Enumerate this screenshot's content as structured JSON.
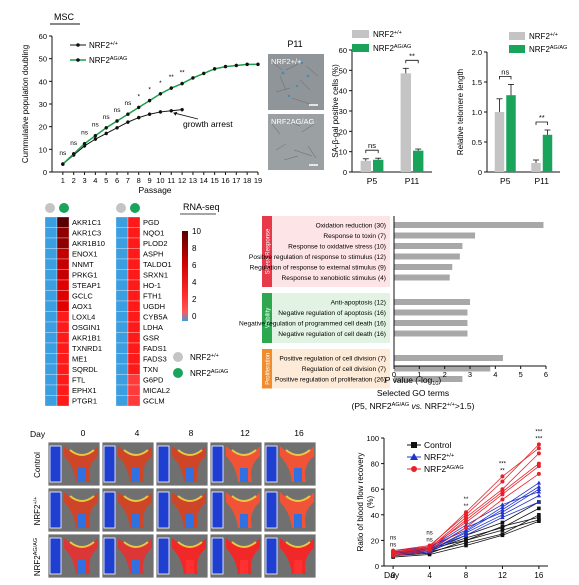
{
  "panelA": {
    "header": "MSC",
    "chart_data": {
      "type": "line",
      "xlabel": "Passage",
      "ylabel": "Cummulative population doubling",
      "xlim": [
        0,
        19
      ],
      "ylim": [
        0,
        60
      ],
      "xticks": [
        1,
        2,
        3,
        4,
        5,
        6,
        7,
        8,
        9,
        10,
        11,
        12,
        13,
        14,
        15,
        16,
        17,
        18,
        19
      ],
      "yticks": [
        0,
        10,
        20,
        30,
        40,
        50,
        60
      ],
      "series": [
        {
          "name": "NRF2+/+",
          "color": "#111111",
          "x": [
            1,
            2,
            3,
            4,
            5,
            6,
            7,
            8,
            9,
            10,
            11,
            12
          ],
          "y": [
            3.5,
            7.5,
            11.5,
            14.5,
            17,
            19.5,
            22,
            24,
            25.5,
            26.5,
            27,
            27.5
          ]
        },
        {
          "name": "NRF2AG/AG",
          "color": "#1a9f4a",
          "x": [
            1,
            2,
            3,
            4,
            5,
            6,
            7,
            8,
            9,
            10,
            11,
            12,
            13,
            14,
            15,
            16,
            17,
            18,
            19
          ],
          "y": [
            3.5,
            8,
            12.5,
            16,
            19.5,
            22.5,
            25.5,
            28.5,
            31.5,
            34.5,
            37,
            39,
            41.5,
            43.5,
            45.5,
            46.5,
            47,
            47.5,
            47.5
          ]
        }
      ],
      "significance": [
        {
          "x": 1,
          "label": "ns"
        },
        {
          "x": 2,
          "label": "ns"
        },
        {
          "x": 3,
          "label": "ns"
        },
        {
          "x": 4,
          "label": "ns"
        },
        {
          "x": 5,
          "label": "ns"
        },
        {
          "x": 6,
          "label": "ns"
        },
        {
          "x": 7,
          "label": "ns"
        },
        {
          "x": 8,
          "label": "*"
        },
        {
          "x": 9,
          "label": "*"
        },
        {
          "x": 10,
          "label": "*"
        },
        {
          "x": 11,
          "label": "**"
        },
        {
          "x": 12,
          "label": "**"
        }
      ],
      "annotation": "growth arrest",
      "legend": [
        "NRF2+/+",
        "NRF2AG/AG"
      ]
    }
  },
  "panelB": {
    "title": "P11",
    "img1_label": "NRF2+/+",
    "img2_label": "NRF2AG/AG"
  },
  "panelC": {
    "chart_data": {
      "type": "bar",
      "categories": [
        "P5",
        "P11"
      ],
      "ylabel": "SA-β-gal positive cells (%)",
      "ylim": [
        0,
        60
      ],
      "yticks": [
        0,
        10,
        20,
        30,
        40,
        50,
        60
      ],
      "series": [
        {
          "name": "NRF2+/+",
          "color": "#c4c4c4",
          "values": [
            5.5,
            48.5
          ],
          "err": [
            1,
            2.5
          ]
        },
        {
          "name": "NRF2AG/AG",
          "color": "#1aa35a",
          "values": [
            6,
            10.5
          ],
          "err": [
            0.8,
            0.8
          ]
        }
      ],
      "significance": [
        {
          "cat": "P5",
          "label": "ns"
        },
        {
          "cat": "P11",
          "label": "**"
        }
      ],
      "legend": [
        "NRF2+/+",
        "NRF2AG/AG"
      ]
    }
  },
  "panelD": {
    "chart_data": {
      "type": "bar",
      "categories": [
        "P5",
        "P11"
      ],
      "ylabel": "Relative telomere length",
      "ylim": [
        0,
        2.0
      ],
      "yticks": [
        0,
        0.5,
        1.0,
        1.5,
        2.0
      ],
      "ytick_labels": [
        "0",
        "0.5",
        "1.0",
        "1.5",
        "2.0"
      ],
      "series": [
        {
          "name": "NRF2+/+",
          "color": "#c4c4c4",
          "values": [
            1.0,
            0.15
          ],
          "err": [
            0.22,
            0.05
          ]
        },
        {
          "name": "NRF2AG/AG",
          "color": "#1aa35a",
          "values": [
            1.28,
            0.62
          ],
          "err": [
            0.18,
            0.08
          ]
        }
      ],
      "significance": [
        {
          "cat": "P5",
          "label": "ns"
        },
        {
          "cat": "P11",
          "label": "**"
        }
      ],
      "legend": [
        "NRF2+/+",
        "NRF2AG/AG"
      ]
    }
  },
  "panelE": {
    "title": "RNA-seq",
    "chart_data": {
      "type": "heatmap",
      "columns": [
        "NRF2+/+",
        "NRF2AG/AG"
      ],
      "genes_left": [
        "AKR1C1",
        "AKR1C3",
        "AKR1B10",
        "ENOX1",
        "NNMT",
        "PRKG1",
        "STEAP1",
        "GCLC",
        "AOX1",
        "LOXL4",
        "OSGIN1",
        "AKR1B1",
        "TXNRD1",
        "ME1",
        "SQRDL",
        "FTL",
        "EPHX1",
        "PTGR1"
      ],
      "values_left": [
        [
          0,
          10
        ],
        [
          0,
          8
        ],
        [
          0,
          7
        ],
        [
          0,
          6
        ],
        [
          0,
          5
        ],
        [
          0,
          5
        ],
        [
          0,
          4
        ],
        [
          0,
          4
        ],
        [
          0,
          4
        ],
        [
          0,
          3.5
        ],
        [
          0,
          3.5
        ],
        [
          0,
          3.5
        ],
        [
          0,
          3
        ],
        [
          0,
          3
        ],
        [
          0,
          3
        ],
        [
          0,
          3
        ],
        [
          0,
          3
        ],
        [
          0,
          3
        ]
      ],
      "genes_right": [
        "PGD",
        "NQO1",
        "PLOD2",
        "ASPH",
        "TALDO1",
        "SRXN1",
        "HO-1",
        "FTH1",
        "UGDH",
        "CYB5A",
        "LDHA",
        "GSR",
        "FADS1",
        "FADS3",
        "TXN",
        "G6PD",
        "MICAL2",
        "GCLM"
      ],
      "values_right": [
        [
          0,
          3
        ],
        [
          0,
          3
        ],
        [
          0,
          3
        ],
        [
          0,
          3
        ],
        [
          0,
          3
        ],
        [
          0,
          3
        ],
        [
          0,
          3
        ],
        [
          0,
          3
        ],
        [
          0,
          3
        ],
        [
          0,
          3
        ],
        [
          0,
          3
        ],
        [
          0,
          3
        ],
        [
          0,
          3
        ],
        [
          0,
          3
        ],
        [
          0,
          3
        ],
        [
          0,
          2
        ],
        [
          0,
          2
        ],
        [
          0,
          2
        ]
      ],
      "colorbar_ticks": [
        "10",
        "8",
        "6",
        "4",
        "2",
        "0"
      ],
      "legend": [
        "NRF2+/+",
        "NRF2AG/AG"
      ]
    }
  },
  "panelF": {
    "chart_data": {
      "type": "bar",
      "orientation": "horizontal",
      "xlabel": "P value (-log10)",
      "xlim": [
        0,
        6
      ],
      "xticks": [
        0,
        1,
        2,
        3,
        4,
        5,
        6
      ],
      "caption_line1": "Selected GO terms",
      "caption_line2": "(P5, NRF2AG/AG vs. NRF2+/+>1.5)",
      "groups": [
        {
          "name": "Stress Response",
          "color": "#e8394a",
          "bg": "#fde4e6",
          "terms": [
            {
              "label": "Oxidation reduction (30)",
              "value": 5.9
            },
            {
              "label": "Response to toxin (7)",
              "value": 3.2
            },
            {
              "label": "Response to oxidative stress (10)",
              "value": 2.7
            },
            {
              "label": "Positive regulation of response to stimulus (12)",
              "value": 2.6
            },
            {
              "label": "Regulation of response to external  stimulus (9)",
              "value": 2.3
            },
            {
              "label": "Response to xenobiotic stimulus (4)",
              "value": 2.2
            }
          ]
        },
        {
          "name": "Viability",
          "color": "#2ea84f",
          "bg": "#e2f3e4",
          "terms": [
            {
              "label": "Anti-apoptosis (12)",
              "value": 3.0
            },
            {
              "label": "Negative regulation of apoptosis (16)",
              "value": 2.9
            },
            {
              "label": "Negative regulation of programmed cell death (16)",
              "value": 2.9
            },
            {
              "label": "Negative regulation of cell death (16)",
              "value": 2.9
            }
          ]
        },
        {
          "name": "Proliferation",
          "color": "#f08c30",
          "bg": "#fdebd8",
          "terms": [
            {
              "label": "Positive regulation of cell division (7)",
              "value": 4.3
            },
            {
              "label": "Regulation of cell division (7)",
              "value": 3.8
            },
            {
              "label": "Positive regulation of proliferation (26)",
              "value": 2.7
            }
          ]
        }
      ]
    }
  },
  "panelG": {
    "day_label": "Day",
    "days": [
      "0",
      "4",
      "8",
      "12",
      "16"
    ],
    "rows": [
      "Control",
      "NRF2+/+",
      "NRF2AG/AG"
    ]
  },
  "panelH": {
    "chart_data": {
      "type": "line",
      "xlabel": "Day",
      "ylabel": "Ratio of blood flow recovery (%)",
      "xlim": [
        -1,
        17
      ],
      "ylim": [
        0,
        100
      ],
      "xticks": [
        0,
        4,
        8,
        12,
        16
      ],
      "yticks": [
        0,
        20,
        40,
        60,
        80,
        100
      ],
      "series": [
        {
          "name": "Control",
          "color": "#111111",
          "marker": "square",
          "lines": [
            [
              8,
              10,
              20,
              28,
              36
            ],
            [
              9,
              11,
              18,
              25,
              40
            ],
            [
              10,
              12,
              22,
              30,
              45
            ],
            [
              11,
              13,
              24,
              34,
              50
            ],
            [
              7,
              9,
              16,
              24,
              35
            ],
            [
              10,
              14,
              20,
              31,
              38
            ]
          ]
        },
        {
          "name": "NRF2+/+",
          "color": "#2233cc",
          "marker": "triangle",
          "lines": [
            [
              9,
              12,
              26,
              40,
              55
            ],
            [
              10,
              13,
              30,
              42,
              60
            ],
            [
              8,
              11,
              24,
              38,
              50
            ],
            [
              12,
              15,
              28,
              46,
              65
            ],
            [
              11,
              14,
              32,
              48,
              58
            ],
            [
              9,
              12,
              27,
              44,
              62
            ]
          ]
        },
        {
          "name": "NRF2AG/AG",
          "color": "#e8202a",
          "marker": "circle",
          "lines": [
            [
              10,
              14,
              38,
              60,
              88
            ],
            [
              9,
              13,
              36,
              58,
              80
            ],
            [
              12,
              16,
              40,
              66,
              95
            ],
            [
              11,
              15,
              34,
              56,
              78
            ],
            [
              8,
              12,
              30,
              52,
              72
            ],
            [
              10,
              15,
              42,
              70,
              92
            ]
          ]
        }
      ],
      "significance": [
        {
          "x": 0,
          "labels": [
            "ns",
            "ns"
          ]
        },
        {
          "x": 4,
          "labels": [
            "ns",
            "ns"
          ]
        },
        {
          "x": 8,
          "labels": [
            "**",
            "**"
          ]
        },
        {
          "x": 12,
          "labels": [
            "***",
            "**"
          ]
        },
        {
          "x": 16,
          "labels": [
            "***",
            "***"
          ]
        }
      ],
      "legend": [
        "Control",
        "NRF2+/+",
        "NRF2AG/AG"
      ]
    }
  }
}
